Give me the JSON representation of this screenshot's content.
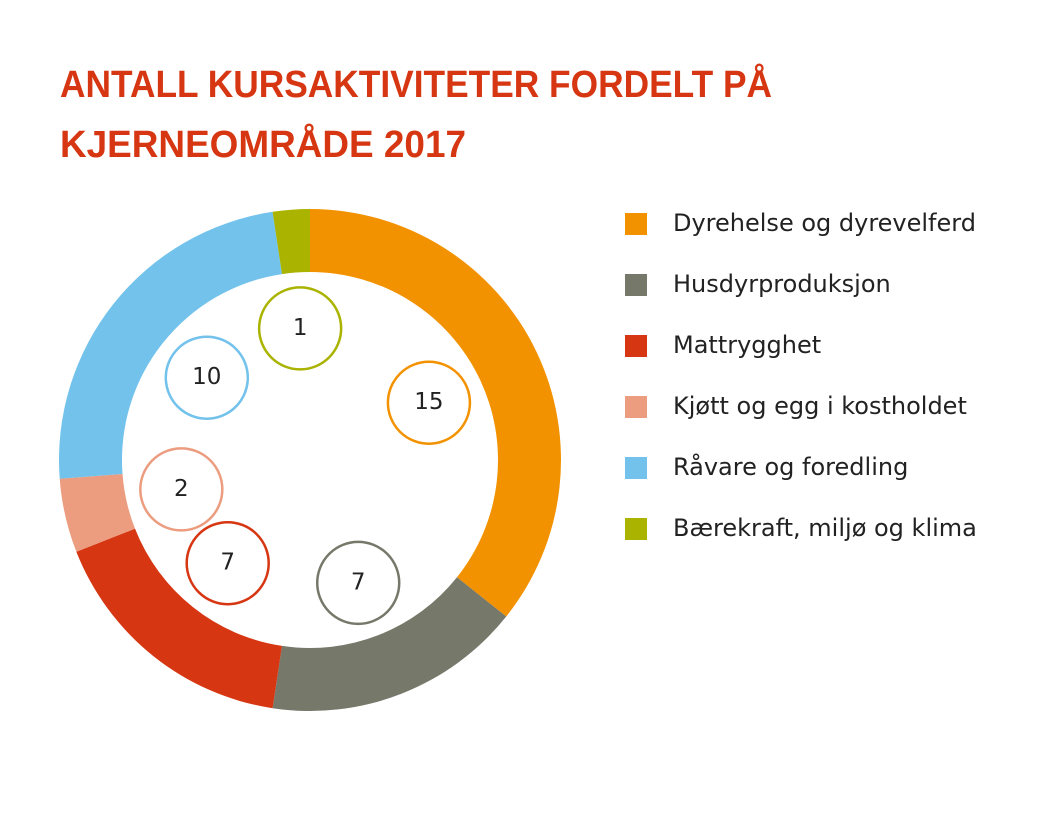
{
  "chart_data": {
    "type": "donut",
    "title": [
      "ANTALL KURSAKTIVITETER FORDELT PÅ",
      "KJERNEOMRÅDE 2017"
    ],
    "categories": [
      "Dyrehelse og dyrevelferd",
      "Husdyrproduksjon",
      "Mattrygghet",
      "Kjøtt og egg i kostholdet",
      "Råvare og foredling",
      "Bærekraft, miljø og klima"
    ],
    "values": [
      15,
      7,
      7,
      2,
      10,
      1
    ],
    "colors": [
      "#f39200",
      "#76786a",
      "#d63611",
      "#ec9c7f",
      "#72c2ec",
      "#a9b300"
    ]
  }
}
